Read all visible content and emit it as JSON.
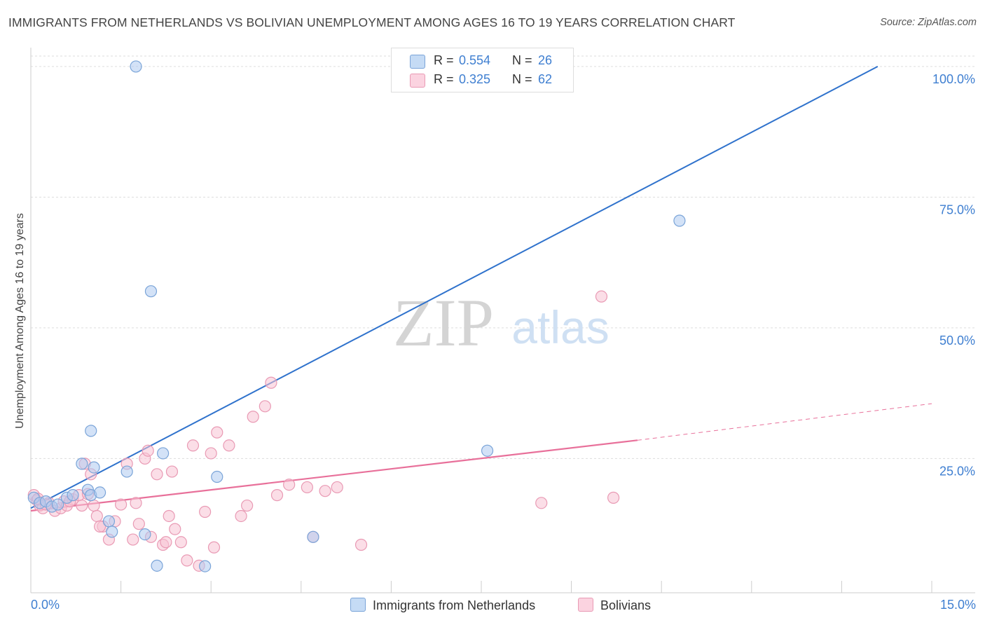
{
  "header": {
    "title": "IMMIGRANTS FROM NETHERLANDS VS BOLIVIAN UNEMPLOYMENT AMONG AGES 16 TO 19 YEARS CORRELATION CHART",
    "source": "Source: ZipAtlas.com"
  },
  "watermark": {
    "zip": "ZIP",
    "atlas": "atlas"
  },
  "colors": {
    "blue_fill": "#aecbf0",
    "blue_stroke": "#7aa4d8",
    "blue_line": "#2f72cc",
    "pink_fill": "#f8c3d4",
    "pink_stroke": "#e99ab4",
    "pink_line": "#e8709a",
    "axis_text": "#3f7fd1",
    "grid": "#dddddd"
  },
  "legend": {
    "rows": [
      {
        "r_label": "R =",
        "r_value": "0.554",
        "n_label": "N =",
        "n_value": "26"
      },
      {
        "r_label": "R =",
        "r_value": "0.325",
        "n_label": "N =",
        "n_value": "62"
      }
    ]
  },
  "bottom_legend": [
    "Immigrants from Netherlands",
    "Bolivians"
  ],
  "x_axis_labels": {
    "left": "0.0%",
    "right": "15.0%"
  },
  "chart_data": {
    "type": "scatter",
    "title": "IMMIGRANTS FROM NETHERLANDS VS BOLIVIAN UNEMPLOYMENT AMONG AGES 16 TO 19 YEARS CORRELATION CHART",
    "xlabel": "",
    "ylabel": "Unemployment Among Ages 16 to 19 years",
    "xlim": [
      0,
      15
    ],
    "ylim": [
      2,
      102
    ],
    "y_ticks": [
      25,
      50,
      75,
      100
    ],
    "y_tick_labels": [
      "25.0%",
      "50.0%",
      "75.0%",
      "100.0%"
    ],
    "x_minor_ticks": [
      0,
      1.5,
      3,
      4.5,
      6,
      7.5,
      9,
      10.5,
      12,
      13.5,
      15
    ],
    "grid": true,
    "legend_position": "top-center",
    "series": [
      {
        "name": "Immigrants from Netherlands",
        "R": 0.554,
        "N": 26,
        "trend": {
          "x0": 0,
          "y0": 15.5,
          "x1": 14.1,
          "y1": 100,
          "extrapolated_to": null
        },
        "points": [
          [
            0.05,
            17.5
          ],
          [
            0.15,
            16.5
          ],
          [
            0.25,
            16.8
          ],
          [
            0.35,
            15.8
          ],
          [
            0.45,
            16.2
          ],
          [
            0.6,
            17.5
          ],
          [
            0.7,
            18.0
          ],
          [
            0.85,
            24.0
          ],
          [
            0.95,
            19.0
          ],
          [
            1.0,
            18.0
          ],
          [
            1.05,
            23.3
          ],
          [
            1.15,
            18.5
          ],
          [
            1.3,
            13.0
          ],
          [
            1.35,
            11.0
          ],
          [
            1.6,
            22.5
          ],
          [
            1.9,
            10.5
          ],
          [
            2.0,
            57.0
          ],
          [
            2.1,
            4.5
          ],
          [
            2.2,
            26.0
          ],
          [
            2.9,
            4.4
          ],
          [
            3.1,
            21.5
          ],
          [
            4.7,
            10.0
          ],
          [
            7.6,
            26.5
          ],
          [
            10.8,
            70.5
          ],
          [
            1.0,
            30.3
          ],
          [
            1.75,
            100.0
          ]
        ]
      },
      {
        "name": "Bolivians",
        "R": 0.325,
        "N": 62,
        "trend": {
          "x0": 0,
          "y0": 15.0,
          "x1": 10.1,
          "y1": 28.5,
          "dashed_to_x": 15,
          "dashed_to_y": 35.5
        },
        "points": [
          [
            0.05,
            18.0
          ],
          [
            0.1,
            17.0
          ],
          [
            0.15,
            16.0
          ],
          [
            0.2,
            15.5
          ],
          [
            0.3,
            16.5
          ],
          [
            0.4,
            15.0
          ],
          [
            0.5,
            15.5
          ],
          [
            0.55,
            16.8
          ],
          [
            0.6,
            16.0
          ],
          [
            0.7,
            17.2
          ],
          [
            0.8,
            18.0
          ],
          [
            0.85,
            16.0
          ],
          [
            0.9,
            24.0
          ],
          [
            0.95,
            18.2
          ],
          [
            1.0,
            22.0
          ],
          [
            1.05,
            16.0
          ],
          [
            1.1,
            14.0
          ],
          [
            1.2,
            12.0
          ],
          [
            1.3,
            9.5
          ],
          [
            1.4,
            13.0
          ],
          [
            1.5,
            16.2
          ],
          [
            1.6,
            24.0
          ],
          [
            1.7,
            9.5
          ],
          [
            1.75,
            16.5
          ],
          [
            1.9,
            25.0
          ],
          [
            1.95,
            26.5
          ],
          [
            2.0,
            10.0
          ],
          [
            2.1,
            22.0
          ],
          [
            2.2,
            8.5
          ],
          [
            2.3,
            14.0
          ],
          [
            2.35,
            22.5
          ],
          [
            2.4,
            11.5
          ],
          [
            2.5,
            9.0
          ],
          [
            2.6,
            5.5
          ],
          [
            2.7,
            27.5
          ],
          [
            2.8,
            4.5
          ],
          [
            2.9,
            14.8
          ],
          [
            3.0,
            26.0
          ],
          [
            3.05,
            8.0
          ],
          [
            3.1,
            30.0
          ],
          [
            3.3,
            27.5
          ],
          [
            3.5,
            14.0
          ],
          [
            3.6,
            16.0
          ],
          [
            3.7,
            33.0
          ],
          [
            3.9,
            35.0
          ],
          [
            4.0,
            39.5
          ],
          [
            4.1,
            18.0
          ],
          [
            4.3,
            20.0
          ],
          [
            4.6,
            19.5
          ],
          [
            4.7,
            10.0
          ],
          [
            4.9,
            18.8
          ],
          [
            5.1,
            19.5
          ],
          [
            5.5,
            8.5
          ],
          [
            8.5,
            16.5
          ],
          [
            9.5,
            56.0
          ],
          [
            9.7,
            17.5
          ],
          [
            0.12,
            17.3
          ],
          [
            0.25,
            16.2
          ],
          [
            0.65,
            16.8
          ],
          [
            1.15,
            12.0
          ],
          [
            1.8,
            12.5
          ],
          [
            2.25,
            9.0
          ]
        ]
      }
    ]
  }
}
